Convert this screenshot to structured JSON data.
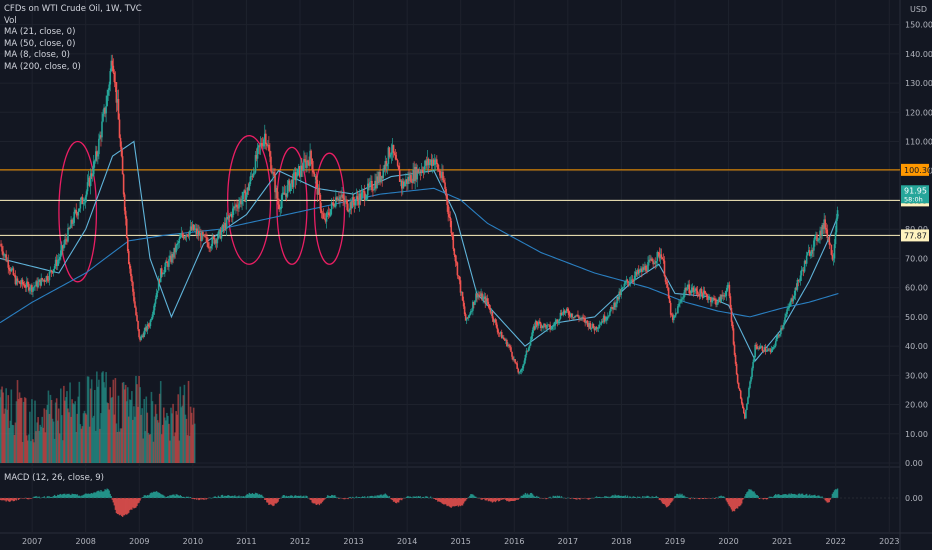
{
  "header": {
    "title": "CFDs on WTI Crude Oil, 1W, TVC",
    "indicators": [
      "Vol",
      "MA (21, close, 0)",
      "MA (50, close, 0)",
      "MA (8, close, 0)",
      "MA (200, close, 0)"
    ],
    "macd_label": "MACD (12, 26, close, 9)",
    "currency": "USD"
  },
  "colors": {
    "background": "#131722",
    "grid": "#1e222d",
    "up": "#26a69a",
    "down": "#ef5350",
    "ma_light": "#5fb3d9",
    "ma_dark": "#2a7fc1",
    "circle": "#e91e63",
    "orange_line": "#ff9800",
    "white_line": "#fff3bf"
  },
  "chart_data": {
    "type": "line",
    "title": "CFDs on WTI Crude Oil, 1W, TVC",
    "x_ticks": [
      "2007",
      "2008",
      "2009",
      "2010",
      "2011",
      "2012",
      "2013",
      "2014",
      "2015",
      "2016",
      "2017",
      "2018",
      "2019",
      "2020",
      "2021",
      "2022",
      "2023"
    ],
    "y_ticks": [
      "150.00",
      "140.00",
      "130.00",
      "120.00",
      "110.00",
      "100.00",
      "90.00",
      "80.00",
      "70.00",
      "60.00",
      "50.00",
      "40.00",
      "30.00",
      "20.00",
      "10.00",
      "0.00"
    ],
    "ylim": [
      0,
      155
    ],
    "xlim": [
      2006.4,
      2023.2
    ],
    "price_series": {
      "name": "WTI Crude Oil",
      "x": [
        2006.4,
        2006.7,
        2007.0,
        2007.3,
        2007.5,
        2007.8,
        2008.0,
        2008.2,
        2008.4,
        2008.5,
        2008.6,
        2008.8,
        2009.0,
        2009.2,
        2009.4,
        2009.6,
        2009.8,
        2010.0,
        2010.3,
        2010.5,
        2010.8,
        2011.0,
        2011.2,
        2011.35,
        2011.6,
        2011.8,
        2012.0,
        2012.2,
        2012.45,
        2012.7,
        2012.9,
        2013.2,
        2013.5,
        2013.7,
        2013.9,
        2014.2,
        2014.5,
        2014.7,
        2014.9,
        2015.1,
        2015.3,
        2015.5,
        2015.7,
        2015.9,
        2016.1,
        2016.4,
        2016.7,
        2016.9,
        2017.2,
        2017.5,
        2017.8,
        2018.1,
        2018.4,
        2018.75,
        2018.95,
        2019.2,
        2019.5,
        2019.8,
        2020.0,
        2020.15,
        2020.3,
        2020.5,
        2020.8,
        2021.0,
        2021.3,
        2021.5,
        2021.8,
        2021.95,
        2022.05
      ],
      "y": [
        75,
        62,
        60,
        64,
        70,
        85,
        92,
        105,
        125,
        140,
        120,
        70,
        42,
        48,
        65,
        70,
        78,
        80,
        75,
        78,
        88,
        92,
        105,
        113,
        88,
        95,
        100,
        105,
        82,
        92,
        88,
        92,
        98,
        108,
        95,
        100,
        104,
        95,
        70,
        48,
        58,
        55,
        45,
        40,
        30,
        48,
        46,
        52,
        50,
        46,
        52,
        62,
        66,
        72,
        48,
        60,
        58,
        55,
        60,
        30,
        15,
        40,
        38,
        47,
        62,
        72,
        82,
        70,
        92
      ]
    },
    "moving_averages": [
      {
        "name": "MA (21, close, 0)",
        "x": [
          2006.4,
          2007.5,
          2008.0,
          2008.5,
          2008.9,
          2009.2,
          2009.6,
          2010.2,
          2011.0,
          2011.6,
          2012.3,
          2013.0,
          2013.7,
          2014.5,
          2014.9,
          2015.3,
          2015.8,
          2016.2,
          2016.8,
          2017.5,
          2018.2,
          2018.7,
          2019.0,
          2019.6,
          2020.0,
          2020.5,
          2021.0,
          2021.5,
          2021.9,
          2022.05
        ],
        "y": [
          70,
          65,
          80,
          105,
          110,
          70,
          50,
          75,
          85,
          100,
          94,
          92,
          98,
          100,
          85,
          58,
          48,
          40,
          48,
          50,
          62,
          68,
          58,
          57,
          54,
          35,
          46,
          62,
          78,
          85
        ]
      },
      {
        "name": "MA (200, close, 0)",
        "x": [
          2006.4,
          2007.0,
          2008.0,
          2008.8,
          2009.5,
          2010.5,
          2011.5,
          2012.5,
          2013.5,
          2014.5,
          2015.0,
          2015.5,
          2016.5,
          2017.5,
          2018.5,
          2019.2,
          2019.8,
          2020.4,
          2021.0,
          2021.5,
          2022.05
        ],
        "y": [
          48,
          55,
          65,
          76,
          78,
          80,
          84,
          88,
          92,
          94,
          90,
          82,
          72,
          65,
          60,
          55,
          52,
          50,
          53,
          55,
          58
        ]
      }
    ],
    "horizontal_levels": [
      {
        "value": 100.3,
        "label": "100.30",
        "color": "#ff9800"
      },
      {
        "value": 89.86,
        "label": "89.86",
        "color": "#fff3bf"
      },
      {
        "value": 77.87,
        "label": "77.87",
        "color": "#fff3bf"
      }
    ],
    "last_price": {
      "value": 91.95,
      "label": "91.95",
      "countdown": "58:0h"
    },
    "annotation_circles": [
      {
        "x": 2007.85,
        "y": 86,
        "rx_years": 0.35,
        "ry_value": 24
      },
      {
        "x": 2011.05,
        "y": 90,
        "rx_years": 0.4,
        "ry_value": 22
      },
      {
        "x": 2011.85,
        "y": 88,
        "rx_years": 0.28,
        "ry_value": 20
      },
      {
        "x": 2012.55,
        "y": 87,
        "rx_years": 0.28,
        "ry_value": 19
      }
    ],
    "macd": {
      "label": "MACD (12, 26, close, 9)",
      "y_tick": "0.00"
    },
    "volume": {
      "name": "Vol",
      "xlim_end": 2010.05
    }
  }
}
